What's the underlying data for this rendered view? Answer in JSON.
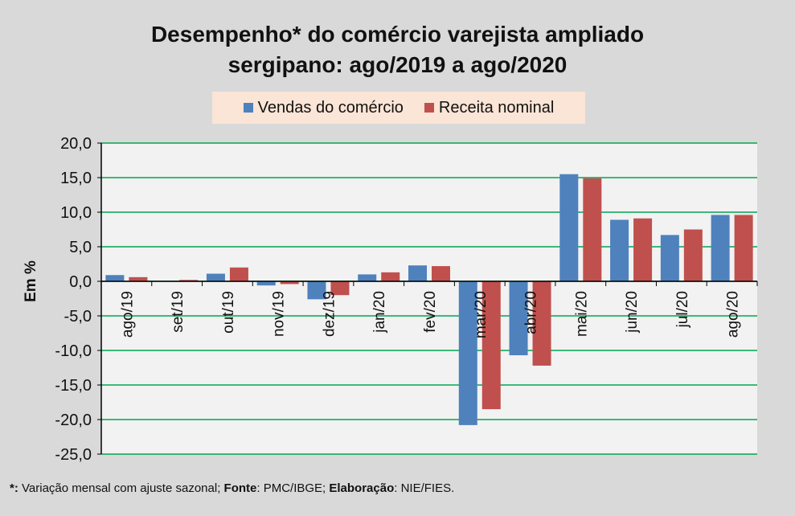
{
  "chart_data": {
    "type": "bar",
    "title_lines": [
      "Desempenho* do comércio varejista ampliado",
      "sergipano: ago/2019 a ago/2020"
    ],
    "ylabel": "Em %",
    "xlabel": "",
    "ylim": [
      -25,
      20
    ],
    "yticks": [
      "20,0",
      "15,0",
      "10,0",
      "5,0",
      "0,0",
      "-5,0",
      "-10,0",
      "-15,0",
      "-20,0",
      "-25,0"
    ],
    "ytick_values": [
      20,
      15,
      10,
      5,
      0,
      -5,
      -10,
      -15,
      -20,
      -25
    ],
    "grid": true,
    "legend_position": "top-center",
    "categories": [
      "ago/19",
      "set/19",
      "out/19",
      "nov/19",
      "dez/19",
      "jan/20",
      "fev/20",
      "mar/20",
      "abr/20",
      "mai/20",
      "jun/20",
      "jul/20",
      "ago/20"
    ],
    "series": [
      {
        "name": "Vendas do comércio",
        "color": "#4f81bd",
        "values": [
          0.9,
          0.0,
          1.1,
          -0.6,
          -2.6,
          1.0,
          2.3,
          -20.8,
          -10.7,
          15.5,
          8.9,
          6.7,
          9.6
        ]
      },
      {
        "name": "Receita nominal",
        "color": "#c0504d",
        "values": [
          0.6,
          0.2,
          2.0,
          -0.4,
          -2.0,
          1.3,
          2.2,
          -18.5,
          -12.2,
          14.9,
          9.1,
          7.5,
          9.6
        ]
      }
    ],
    "grid_color": "#00a651",
    "plot_background": "#f2f2f2"
  },
  "footnote": {
    "star": "*:",
    "star_text": " Variação mensal com ajuste sazonal; ",
    "fonte_label": "Fonte",
    "fonte_text": ": PMC/IBGE; ",
    "elab_label": "Elaboração",
    "elab_text": ": NIE/FIES."
  }
}
